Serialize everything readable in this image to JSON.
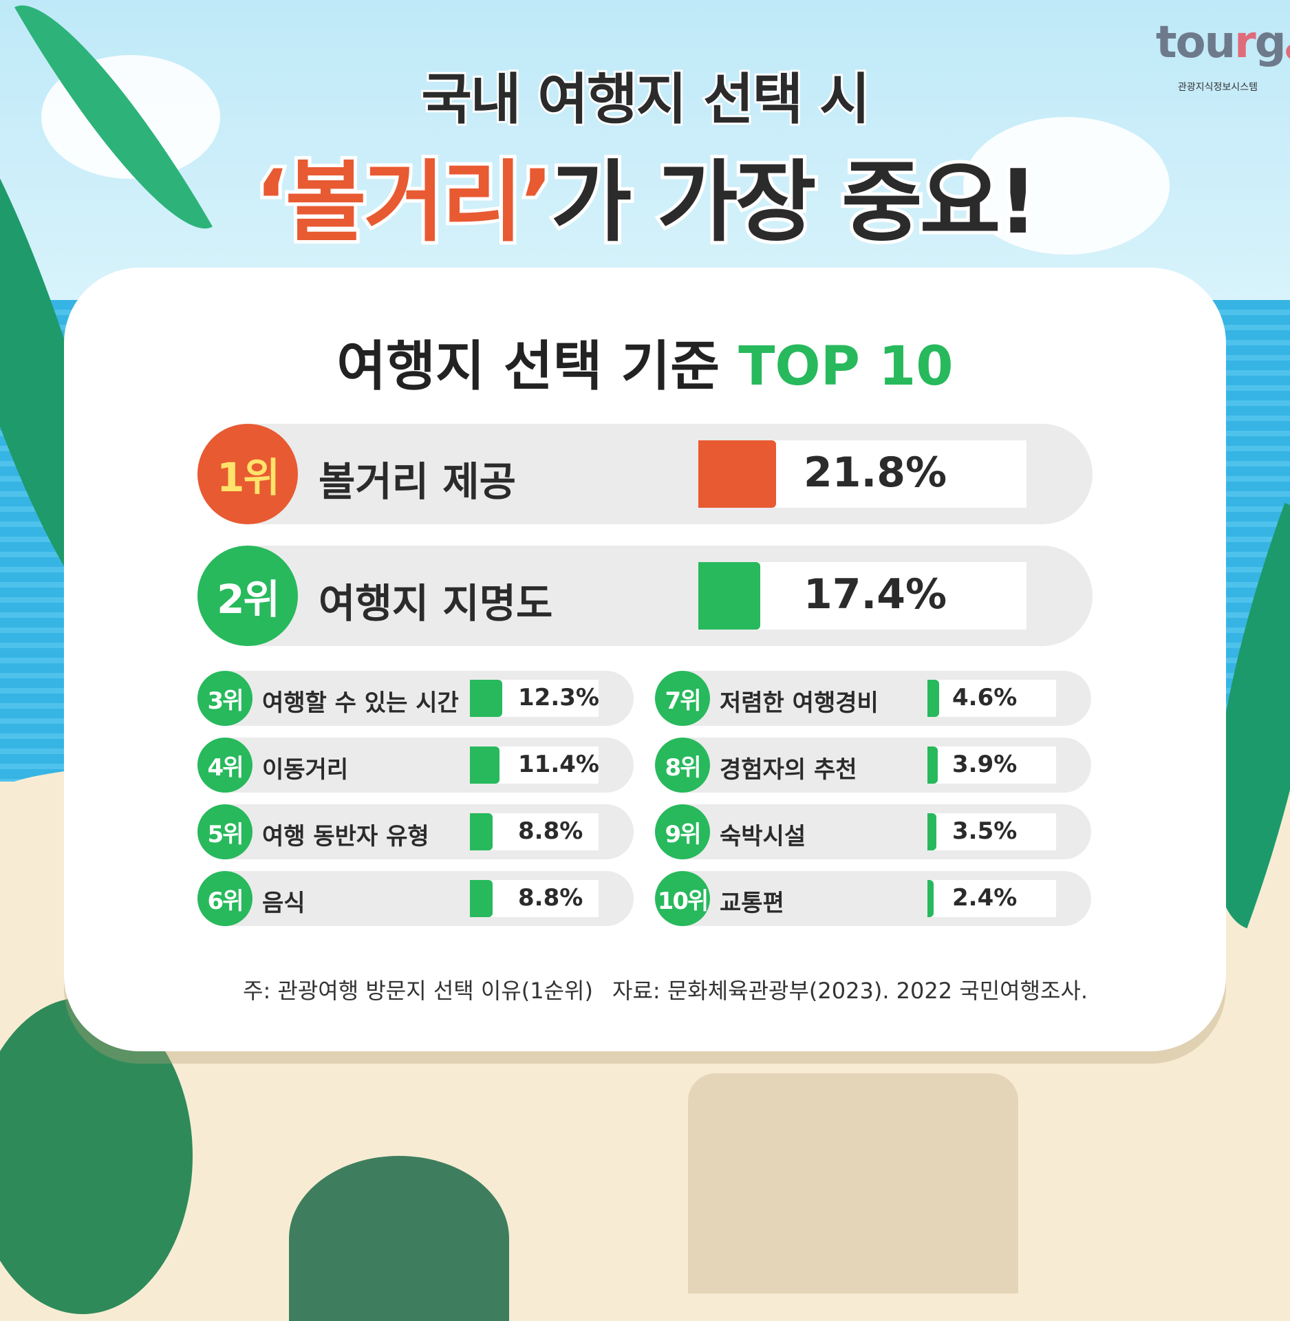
{
  "header": {
    "title_line1": "국내 여행지 선택 시",
    "title_highlight": "‘볼거리’",
    "title_rest": "가 가장 중요!"
  },
  "logo": {
    "word": "tourg",
    "subtitle": "관광지식정보시스템"
  },
  "colors": {
    "top1": "#e85a32",
    "green": "#27b95c",
    "pill": "#ebebeb"
  },
  "chart_data": {
    "type": "bar",
    "title": "여행지 선택 기준 TOP 10",
    "title_main": "여행지 선택 기준",
    "title_accent": "TOP 10",
    "unit": "%",
    "items": [
      {
        "rank": "1위",
        "label": "볼거리 제공",
        "value": 21.8,
        "display": "21.8%"
      },
      {
        "rank": "2위",
        "label": "여행지 지명도",
        "value": 17.4,
        "display": "17.4%"
      },
      {
        "rank": "3위",
        "label": "여행할 수 있는 시간",
        "value": 12.3,
        "display": "12.3%"
      },
      {
        "rank": "4위",
        "label": "이동거리",
        "value": 11.4,
        "display": "11.4%"
      },
      {
        "rank": "5위",
        "label": "여행 동반자 유형",
        "value": 8.8,
        "display": "8.8%"
      },
      {
        "rank": "6위",
        "label": "음식",
        "value": 8.8,
        "display": "8.8%"
      },
      {
        "rank": "7위",
        "label": "저렴한 여행경비",
        "value": 4.6,
        "display": "4.6%"
      },
      {
        "rank": "8위",
        "label": "경험자의 추천",
        "value": 3.9,
        "display": "3.9%"
      },
      {
        "rank": "9위",
        "label": "숙박시설",
        "value": 3.5,
        "display": "3.5%"
      },
      {
        "rank": "10위",
        "label": "교통편",
        "value": 2.4,
        "display": "2.4%"
      }
    ]
  },
  "footer": {
    "note": "주: 관광여행 방문지 선택 이유(1순위)",
    "source": "자료: 문화체육관광부(2023). 2022 국민여행조사."
  }
}
